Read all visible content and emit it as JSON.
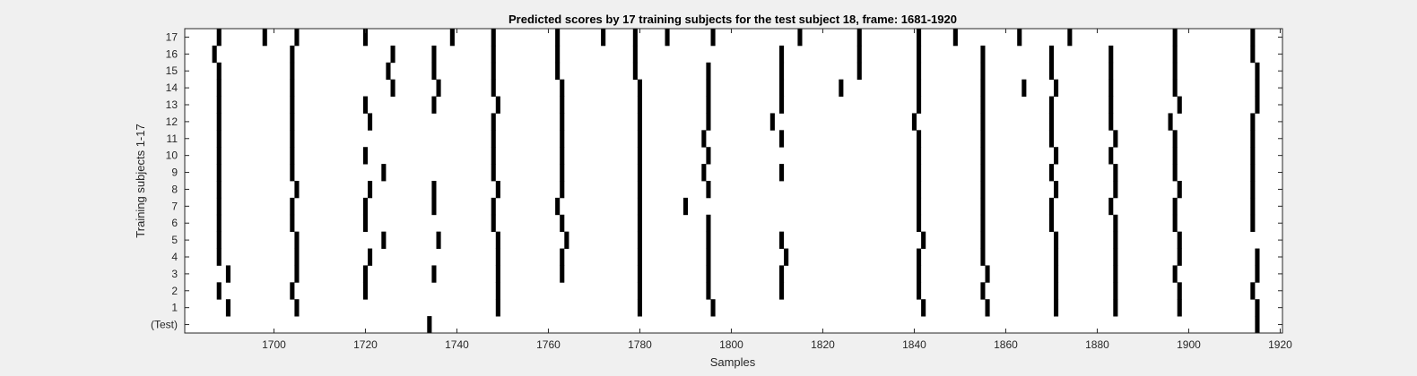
{
  "chart_data": {
    "type": "heatmap",
    "title": "Predicted scores by 17 training subjects for the test subject 18, frame: 1681-1920",
    "xlabel": "Samples",
    "ylabel": "Training subjects 1-17",
    "xlim": [
      1681,
      1920
    ],
    "x_ticks": [
      1700,
      1720,
      1740,
      1760,
      1780,
      1800,
      1820,
      1840,
      1860,
      1880,
      1900,
      1920
    ],
    "y_categories": [
      "(Test)",
      "1",
      "2",
      "3",
      "4",
      "5",
      "6",
      "7",
      "8",
      "9",
      "10",
      "11",
      "12",
      "13",
      "14",
      "15",
      "16",
      "17"
    ],
    "grid": false,
    "colors": {
      "background": "#f0f0f0",
      "plot": "#ffffff",
      "mark": "#000000"
    },
    "rows": [
      {
        "label": "(Test)",
        "samples": [
          1734,
          1915
        ]
      },
      {
        "label": "1",
        "samples": [
          1690,
          1705,
          1749,
          1780,
          1796,
          1842,
          1856,
          1871,
          1884,
          1898,
          1915
        ]
      },
      {
        "label": "2",
        "samples": [
          1688,
          1704,
          1720,
          1749,
          1780,
          1795,
          1811,
          1841,
          1855,
          1871,
          1884,
          1898,
          1914
        ]
      },
      {
        "label": "3",
        "samples": [
          1690,
          1705,
          1720,
          1735,
          1749,
          1763,
          1780,
          1795,
          1811,
          1841,
          1856,
          1871,
          1884,
          1897,
          1915
        ]
      },
      {
        "label": "4",
        "samples": [
          1688,
          1705,
          1721,
          1749,
          1763,
          1780,
          1795,
          1812,
          1841,
          1855,
          1871,
          1884,
          1898,
          1915
        ]
      },
      {
        "label": "5",
        "samples": [
          1688,
          1705,
          1724,
          1736,
          1749,
          1764,
          1780,
          1795,
          1811,
          1842,
          1855,
          1871,
          1884,
          1898
        ]
      },
      {
        "label": "6",
        "samples": [
          1688,
          1704,
          1720,
          1748,
          1763,
          1780,
          1795,
          1841,
          1855,
          1870,
          1884,
          1897,
          1914
        ]
      },
      {
        "label": "7",
        "samples": [
          1688,
          1704,
          1720,
          1735,
          1748,
          1762,
          1780,
          1790,
          1841,
          1855,
          1870,
          1883,
          1897,
          1914
        ]
      },
      {
        "label": "8",
        "samples": [
          1688,
          1705,
          1721,
          1735,
          1749,
          1763,
          1780,
          1795,
          1841,
          1855,
          1871,
          1884,
          1898,
          1914
        ]
      },
      {
        "label": "9",
        "samples": [
          1688,
          1704,
          1724,
          1748,
          1763,
          1780,
          1794,
          1811,
          1841,
          1855,
          1870,
          1884,
          1897,
          1914
        ]
      },
      {
        "label": "10",
        "samples": [
          1688,
          1704,
          1720,
          1748,
          1763,
          1780,
          1795,
          1841,
          1855,
          1871,
          1883,
          1897,
          1914
        ]
      },
      {
        "label": "11",
        "samples": [
          1688,
          1704,
          1748,
          1763,
          1780,
          1794,
          1811,
          1841,
          1855,
          1870,
          1884,
          1897,
          1914
        ]
      },
      {
        "label": "12",
        "samples": [
          1688,
          1704,
          1721,
          1748,
          1763,
          1780,
          1795,
          1809,
          1840,
          1855,
          1870,
          1883,
          1896,
          1914
        ]
      },
      {
        "label": "13",
        "samples": [
          1688,
          1704,
          1720,
          1735,
          1749,
          1763,
          1780,
          1795,
          1811,
          1841,
          1855,
          1870,
          1883,
          1898,
          1915
        ]
      },
      {
        "label": "14",
        "samples": [
          1688,
          1704,
          1726,
          1736,
          1748,
          1763,
          1780,
          1795,
          1811,
          1824,
          1841,
          1855,
          1864,
          1871,
          1883,
          1897,
          1915
        ]
      },
      {
        "label": "15",
        "samples": [
          1688,
          1704,
          1725,
          1735,
          1748,
          1762,
          1779,
          1795,
          1811,
          1828,
          1841,
          1855,
          1870,
          1883,
          1897,
          1915
        ]
      },
      {
        "label": "16",
        "samples": [
          1687,
          1704,
          1726,
          1735,
          1748,
          1762,
          1779,
          1811,
          1828,
          1841,
          1855,
          1870,
          1883,
          1897,
          1914
        ]
      },
      {
        "label": "17",
        "samples": [
          1688,
          1698,
          1705,
          1720,
          1739,
          1748,
          1762,
          1772,
          1779,
          1786,
          1796,
          1815,
          1828,
          1841,
          1849,
          1863,
          1874,
          1897,
          1914
        ]
      }
    ]
  }
}
